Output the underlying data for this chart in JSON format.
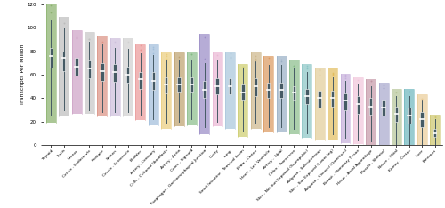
{
  "tissues": [
    "Thyroid",
    "Testis",
    "Uterus",
    "Cervix - Endocervix",
    "Prostate",
    "Spleen",
    "Cervix - Ectocervix",
    "Bladder",
    "Artery - Coronary",
    "Cells - Cultured fibroblasts",
    "Artery - Aorta",
    "Colon - Sigmoid",
    "Esophagus - Gastroesophageal Junction",
    "Ovary",
    "Lung",
    "Small Intestine - Terminal Ileum",
    "Brain - Cortex",
    "Heart - Left Ventricle",
    "Artery - Tibial",
    "Colon - Transverse",
    "Skin - Not Sun Exposed (Suprapubic)",
    "Adipose - Subcutaneous",
    "Skin - Sun Exposed (Lower leg)",
    "Adipose - Visceral (Omentum)",
    "Breast - Mammary Tissue",
    "Heart - Atrial Appendage",
    "Muscle - Skeletal",
    "Nerve - Tibial",
    "Kidney - Cortex",
    "Liver",
    "Pancreas"
  ],
  "colors": [
    "#7faa5e",
    "#b8b8b8",
    "#c898c0",
    "#c0c0c0",
    "#d88878",
    "#c8b8d8",
    "#cccccc",
    "#e89090",
    "#98b8d8",
    "#e8c870",
    "#b89860",
    "#80b880",
    "#9080c0",
    "#e8b0d0",
    "#a0c0d8",
    "#c8c860",
    "#c8b080",
    "#d89050",
    "#90a8c0",
    "#80b880",
    "#80c0c0",
    "#e0c890",
    "#e0b850",
    "#c0a8d8",
    "#f0c0d8",
    "#c090a0",
    "#a0a0c8",
    "#b0c090",
    "#60b0b8",
    "#e8c890",
    "#c8c060"
  ],
  "medians": [
    76,
    74,
    67,
    65,
    63,
    62,
    60,
    56,
    55,
    52,
    52,
    52,
    47,
    50,
    50,
    45,
    50,
    47,
    47,
    45,
    42,
    40,
    40,
    38,
    35,
    33,
    32,
    27,
    25,
    22,
    10
  ],
  "q1": [
    66,
    63,
    59,
    57,
    55,
    54,
    53,
    48,
    47,
    44,
    45,
    45,
    40,
    43,
    43,
    38,
    42,
    40,
    40,
    38,
    35,
    32,
    33,
    30,
    27,
    26,
    25,
    20,
    18,
    15,
    7
  ],
  "q3": [
    83,
    80,
    74,
    72,
    70,
    69,
    67,
    62,
    62,
    58,
    58,
    58,
    55,
    57,
    57,
    52,
    57,
    53,
    53,
    50,
    48,
    46,
    46,
    44,
    42,
    40,
    38,
    33,
    32,
    28,
    14
  ],
  "whisker_low": [
    26,
    30,
    32,
    30,
    28,
    28,
    28,
    26,
    22,
    18,
    20,
    22,
    15,
    20,
    18,
    12,
    18,
    15,
    15,
    14,
    10,
    8,
    9,
    6,
    4,
    3,
    2,
    0,
    0,
    0,
    0
  ],
  "whisker_high": [
    107,
    100,
    90,
    88,
    86,
    83,
    82,
    78,
    77,
    72,
    72,
    72,
    70,
    72,
    72,
    65,
    71,
    68,
    68,
    65,
    62,
    58,
    58,
    55,
    52,
    50,
    47,
    42,
    42,
    38,
    22
  ],
  "violin_min": [
    20,
    25,
    28,
    28,
    25,
    25,
    25,
    22,
    18,
    15,
    17,
    18,
    10,
    17,
    15,
    8,
    15,
    12,
    12,
    10,
    7,
    5,
    6,
    3,
    2,
    1,
    0,
    0,
    0,
    0,
    0
  ],
  "violin_max": [
    120,
    108,
    97,
    95,
    92,
    90,
    90,
    85,
    85,
    78,
    78,
    78,
    94,
    78,
    78,
    68,
    78,
    75,
    75,
    72,
    68,
    65,
    65,
    60,
    57,
    55,
    52,
    47,
    47,
    42,
    25
  ],
  "has_outliers_high": [
    true,
    true,
    true,
    true,
    true,
    true,
    true,
    true,
    true,
    true,
    true,
    true,
    true,
    true,
    true,
    true,
    true,
    true,
    true,
    true,
    true,
    true,
    true,
    true,
    true,
    true,
    true,
    true,
    true,
    true,
    true
  ],
  "ylabel": "Transcripts Per Million",
  "ylim": [
    0,
    120
  ],
  "yticks": [
    0,
    20,
    40,
    60,
    80,
    100,
    120
  ],
  "violin_width": 0.38,
  "box_width": 0.12,
  "box_color": "#455a64",
  "median_color": "white",
  "whisker_color": "#455a64"
}
